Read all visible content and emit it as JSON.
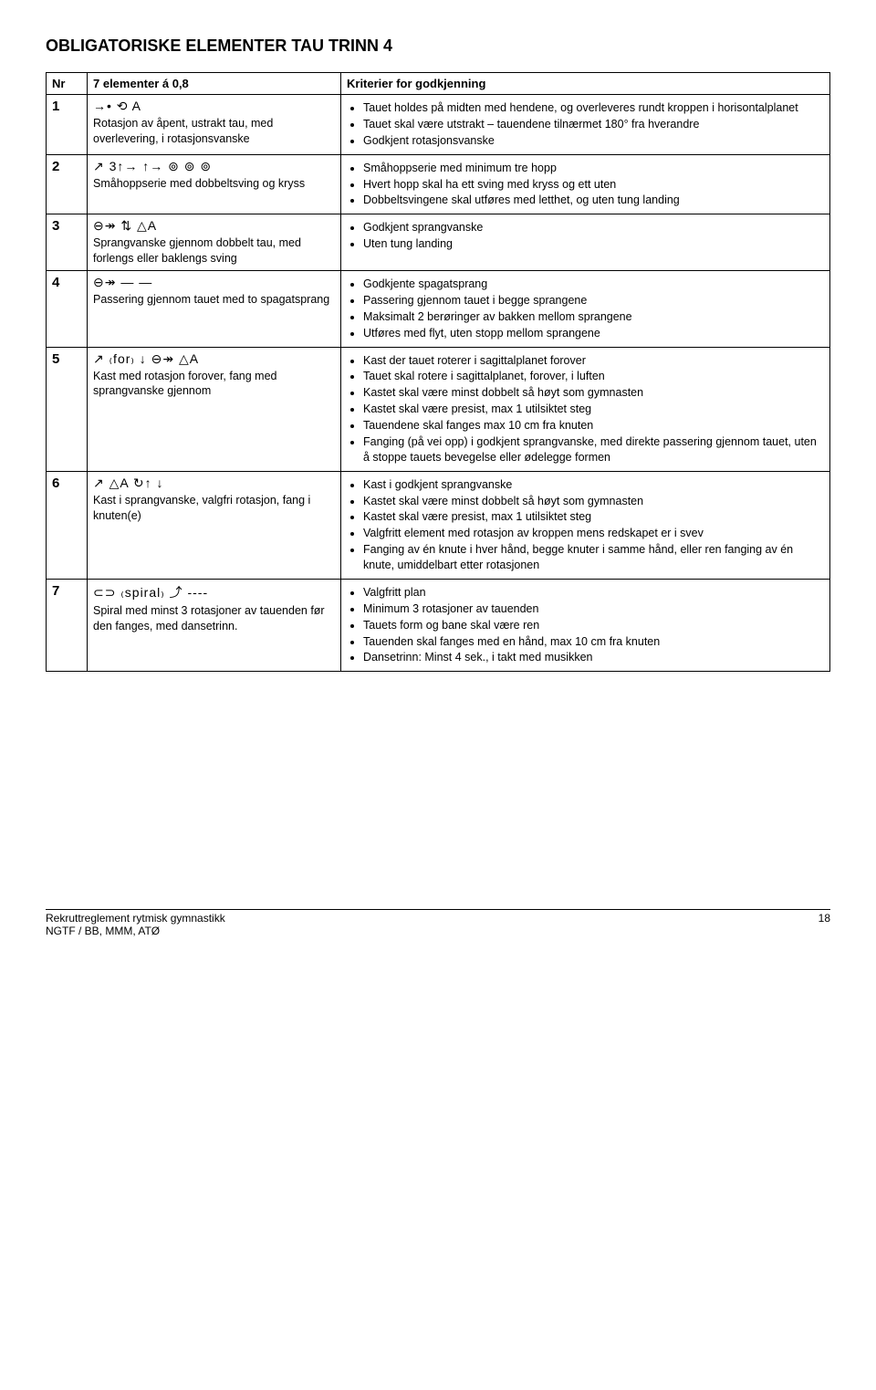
{
  "title": "OBLIGATORISKE ELEMENTER TAU TRINN 4",
  "headers": {
    "nr": "Nr",
    "el": "7 elementer á 0,8",
    "crit": "Kriterier for godkjenning"
  },
  "rows": [
    {
      "nr": "1",
      "glyphs": "→• ⟲ A",
      "el": "Rotasjon av åpent, ustrakt tau, med overlevering, i rotasjonsvanske",
      "crit": [
        "Tauet holdes på midten med hendene, og overleveres rundt kroppen i horisontalplanet",
        "Tauet skal være utstrakt – tauendene tilnærmet 180° fra hverandre",
        "Godkjent rotasjonsvanske"
      ]
    },
    {
      "nr": "2",
      "glyphs": "↗ 3↑→ ↑→ ⊚ ⊚ ⊚",
      "el": "Småhoppserie med dobbeltsving og kryss",
      "crit": [
        "Småhoppserie med minimum tre hopp",
        "Hvert hopp skal ha ett sving med kryss og ett uten",
        "Dobbeltsvingene skal utføres med letthet, og uten tung landing"
      ]
    },
    {
      "nr": "3",
      "glyphs": "⊖↠ ⇅ △A",
      "el": "Sprangvanske gjennom dobbelt tau, med forlengs eller baklengs sving",
      "crit": [
        "Godkjent sprangvanske",
        "Uten tung landing"
      ]
    },
    {
      "nr": "4",
      "glyphs": "⊖↠ —  —",
      "el": "Passering gjennom tauet med to spagatsprang",
      "crit": [
        "Godkjente spagatsprang",
        "Passering gjennom tauet i begge sprangene",
        "Maksimalt 2 berøringer av bakken mellom sprangene",
        "Utføres med flyt, uten stopp mellom sprangene"
      ]
    },
    {
      "nr": "5",
      "glyphs": "↗ ₍for₎ ↓ ⊖↠ △A",
      "el": "Kast med rotasjon forover, fang med sprangvanske gjennom",
      "crit": [
        "Kast der tauet roterer i sagittalplanet forover",
        "Tauet skal rotere i sagittalplanet, forover, i luften",
        "Kastet skal være minst dobbelt så høyt som gymnasten",
        "Kastet skal være presist, max 1 utilsiktet steg",
        "Tauendene skal fanges max 10 cm fra knuten",
        "Fanging (på vei opp) i godkjent sprangvanske, med direkte passering gjennom tauet, uten å stoppe tauets bevegelse eller ødelegge formen"
      ]
    },
    {
      "nr": "6",
      "glyphs": "↗ △A ↻↑ ↓",
      "el": "Kast i sprangvanske, valgfri rotasjon, fang i knuten(e)",
      "crit": [
        "Kast i godkjent sprangvanske",
        "Kastet skal være minst dobbelt så høyt som gymnasten",
        "Kastet skal være presist, max 1 utilsiktet steg",
        "Valgfritt element med rotasjon av kroppen mens redskapet er i svev",
        "Fanging av én knute i hver hånd, begge knuter i samme hånd, eller ren fanging av én knute, umiddelbart etter rotasjonen"
      ]
    },
    {
      "nr": "7",
      "glyphs": "⊂⊃ ₍spiral₎ ⤴ ----",
      "el": "Spiral med minst 3 rotasjoner av tauenden før den fanges, med dansetrinn.",
      "crit": [
        "Valgfritt plan",
        "Minimum 3 rotasjoner av tauenden",
        "Tauets form og bane skal være ren",
        "Tauenden skal fanges med en hånd, max 10 cm fra knuten",
        "Dansetrinn: Minst 4 sek., i takt med musikken"
      ]
    }
  ],
  "footer": {
    "left1": "Rekruttreglement rytmisk gymnastikk",
    "left2": "NGTF / BB, MMM, ATØ",
    "page": "18"
  }
}
